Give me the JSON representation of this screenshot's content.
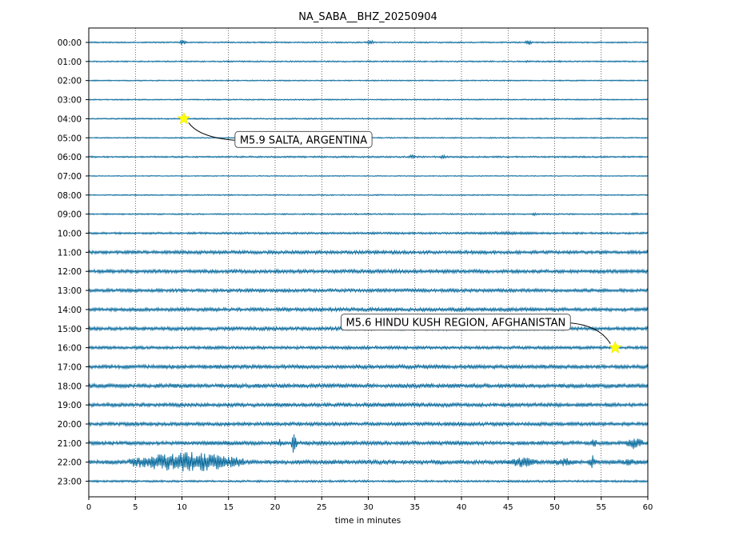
{
  "chart_data": {
    "type": "line",
    "title": "NA_SABA__BHZ_20250904",
    "xlabel": "time in minutes",
    "ylabel": "",
    "xlim": [
      0,
      60
    ],
    "x_ticks": [
      "0",
      "5",
      "10",
      "15",
      "20",
      "25",
      "30",
      "35",
      "40",
      "45",
      "50",
      "55",
      "60"
    ],
    "hours": [
      "00:00",
      "01:00",
      "02:00",
      "03:00",
      "04:00",
      "05:00",
      "06:00",
      "07:00",
      "08:00",
      "09:00",
      "10:00",
      "11:00",
      "12:00",
      "13:00",
      "14:00",
      "15:00",
      "16:00",
      "17:00",
      "18:00",
      "19:00",
      "20:00",
      "21:00",
      "22:00",
      "23:00"
    ],
    "trace_color": "#00669a",
    "grid": "vertical dotted lines every 5 minutes",
    "noise_level": [
      0.6,
      0.6,
      0.5,
      0.5,
      0.6,
      0.5,
      0.7,
      0.4,
      0.5,
      0.6,
      0.9,
      1.4,
      1.5,
      1.4,
      1.5,
      1.5,
      1.3,
      1.6,
      1.7,
      1.6,
      1.5,
      1.6,
      1.7,
      0.9
    ],
    "bursts": [
      {
        "hour": 0,
        "t": 10.1,
        "dur": 0.4,
        "amp": 4
      },
      {
        "hour": 0,
        "t": 30.2,
        "dur": 0.4,
        "amp": 4
      },
      {
        "hour": 0,
        "t": 47.2,
        "dur": 0.4,
        "amp": 4
      },
      {
        "hour": 1,
        "t": 47.0,
        "dur": 0.3,
        "amp": 2
      },
      {
        "hour": 1,
        "t": 50.5,
        "dur": 0.3,
        "amp": 2
      },
      {
        "hour": 6,
        "t": 34.7,
        "dur": 0.4,
        "amp": 3
      },
      {
        "hour": 6,
        "t": 38.0,
        "dur": 0.3,
        "amp": 3
      },
      {
        "hour": 9,
        "t": 47.8,
        "dur": 0.3,
        "amp": 2
      },
      {
        "hour": 9,
        "t": 58.6,
        "dur": 0.6,
        "amp": 2
      },
      {
        "hour": 10,
        "t": 45.0,
        "dur": 8.0,
        "amp": 2
      },
      {
        "hour": 12,
        "t": 31.5,
        "dur": 1.0,
        "amp": 2
      },
      {
        "hour": 13,
        "t": 48.0,
        "dur": 0.5,
        "amp": 2.5
      },
      {
        "hour": 16,
        "t": 13.5,
        "dur": 1.5,
        "amp": 2
      },
      {
        "hour": 17,
        "t": 14.0,
        "dur": 2.0,
        "amp": 2.5
      },
      {
        "hour": 17,
        "t": 37.0,
        "dur": 2.0,
        "amp": 2.5
      },
      {
        "hour": 19,
        "t": 32.0,
        "dur": 3.0,
        "amp": 2
      },
      {
        "hour": 20,
        "t": 44.2,
        "dur": 0.6,
        "amp": 3
      },
      {
        "hour": 21,
        "t": 15.0,
        "dur": 7.5,
        "amp": 3
      },
      {
        "hour": 21,
        "t": 20.5,
        "dur": 0.6,
        "amp": 6
      },
      {
        "hour": 21,
        "t": 22.0,
        "dur": 0.3,
        "amp": 15
      },
      {
        "hour": 21,
        "t": 46.5,
        "dur": 1.0,
        "amp": 3
      },
      {
        "hour": 21,
        "t": 54.2,
        "dur": 0.3,
        "amp": 8
      },
      {
        "hour": 21,
        "t": 58.5,
        "dur": 1.5,
        "amp": 9
      },
      {
        "hour": 22,
        "t": 2.5,
        "dur": 0.5,
        "amp": 3
      },
      {
        "hour": 22,
        "t": 10.5,
        "dur": 12.0,
        "amp": 14
      },
      {
        "hour": 22,
        "t": 26.2,
        "dur": 0.3,
        "amp": 4
      },
      {
        "hour": 22,
        "t": 46.5,
        "dur": 3.5,
        "amp": 7
      },
      {
        "hour": 22,
        "t": 51.0,
        "dur": 2.5,
        "amp": 6
      },
      {
        "hour": 22,
        "t": 54.0,
        "dur": 0.6,
        "amp": 10
      },
      {
        "hour": 22,
        "t": 58.0,
        "dur": 1.5,
        "amp": 5
      }
    ],
    "events": [
      {
        "label": "M5.9 SALTA, ARGENTINA",
        "hour": 4,
        "minute": 10.2,
        "label_pos": "right-below"
      },
      {
        "label": "M5.6 HINDU KUSH REGION, AFGHANISTAN",
        "hour": 16,
        "minute": 56.5,
        "label_pos": "left-above"
      }
    ],
    "marker_color": "#ffff00"
  }
}
